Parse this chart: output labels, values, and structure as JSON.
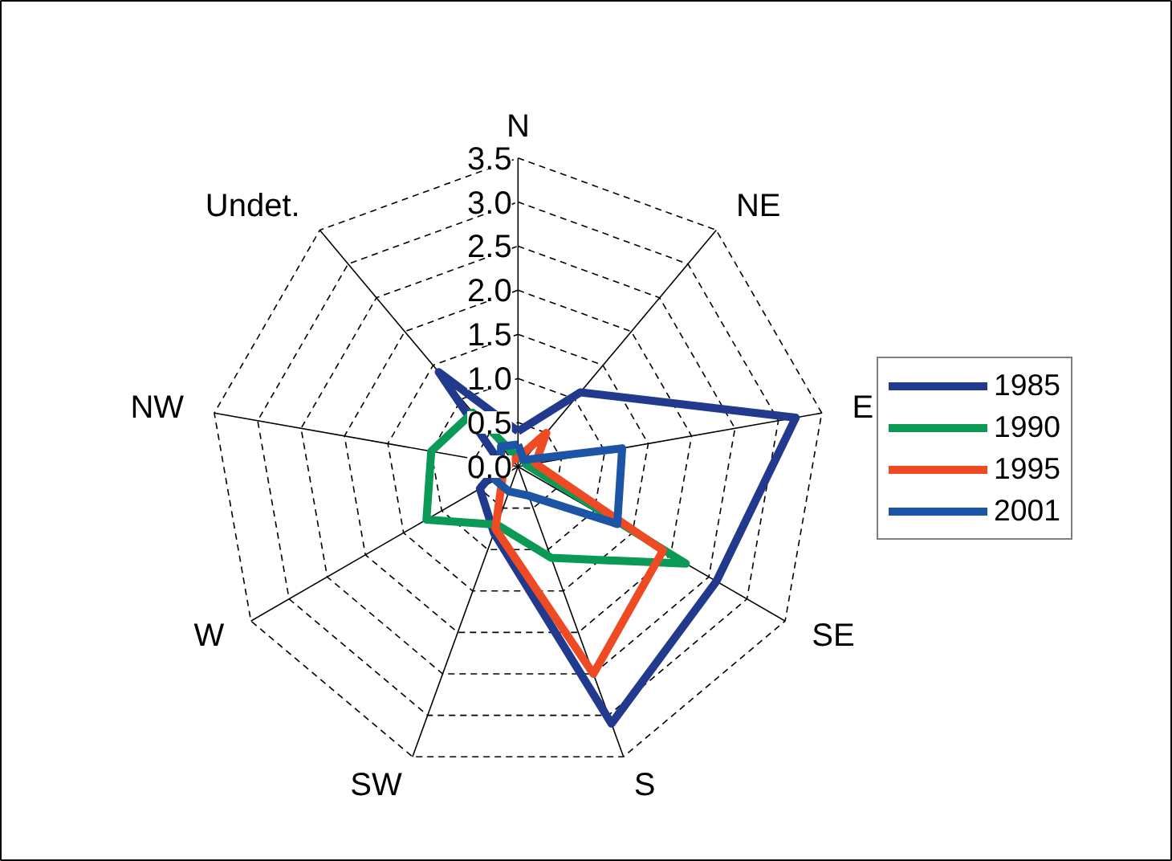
{
  "chart_data": {
    "type": "radar",
    "categories": [
      "N",
      "NE",
      "E",
      "SE",
      "S",
      "SW",
      "W",
      "NW",
      "Undet."
    ],
    "series": [
      {
        "name": "1985",
        "color": "#223a8e",
        "values": [
          0.4,
          1.1,
          3.2,
          2.6,
          3.1,
          0.8,
          0.5,
          0.2,
          1.4
        ]
      },
      {
        "name": "1990",
        "color": "#0b9a55",
        "values": [
          0.1,
          0.1,
          0.1,
          2.2,
          1.1,
          0.7,
          1.2,
          1.0,
          0.8
        ]
      },
      {
        "name": "1995",
        "color": "#ee4a24",
        "values": [
          0.1,
          0.5,
          0.2,
          1.9,
          2.5,
          0.75,
          0.2,
          0.1,
          0.1
        ]
      },
      {
        "name": "2001",
        "color": "#1c55a6",
        "values": [
          0.25,
          0.1,
          1.2,
          1.3,
          0.35,
          0.3,
          0.3,
          0.2,
          0.3
        ]
      }
    ],
    "ylim": [
      0,
      3.5
    ],
    "yticks": [
      {
        "value": 0,
        "label": "0.0"
      },
      {
        "value": 0.5,
        "label": "0.5"
      },
      {
        "value": 1,
        "label": "1.0"
      },
      {
        "value": 1.5,
        "label": "1.5"
      },
      {
        "value": 2,
        "label": "2.0"
      },
      {
        "value": 2.5,
        "label": "2.5"
      },
      {
        "value": 3,
        "label": "3.0"
      },
      {
        "value": 3.5,
        "label": "3.5"
      }
    ],
    "grid": true,
    "legend": "right"
  }
}
